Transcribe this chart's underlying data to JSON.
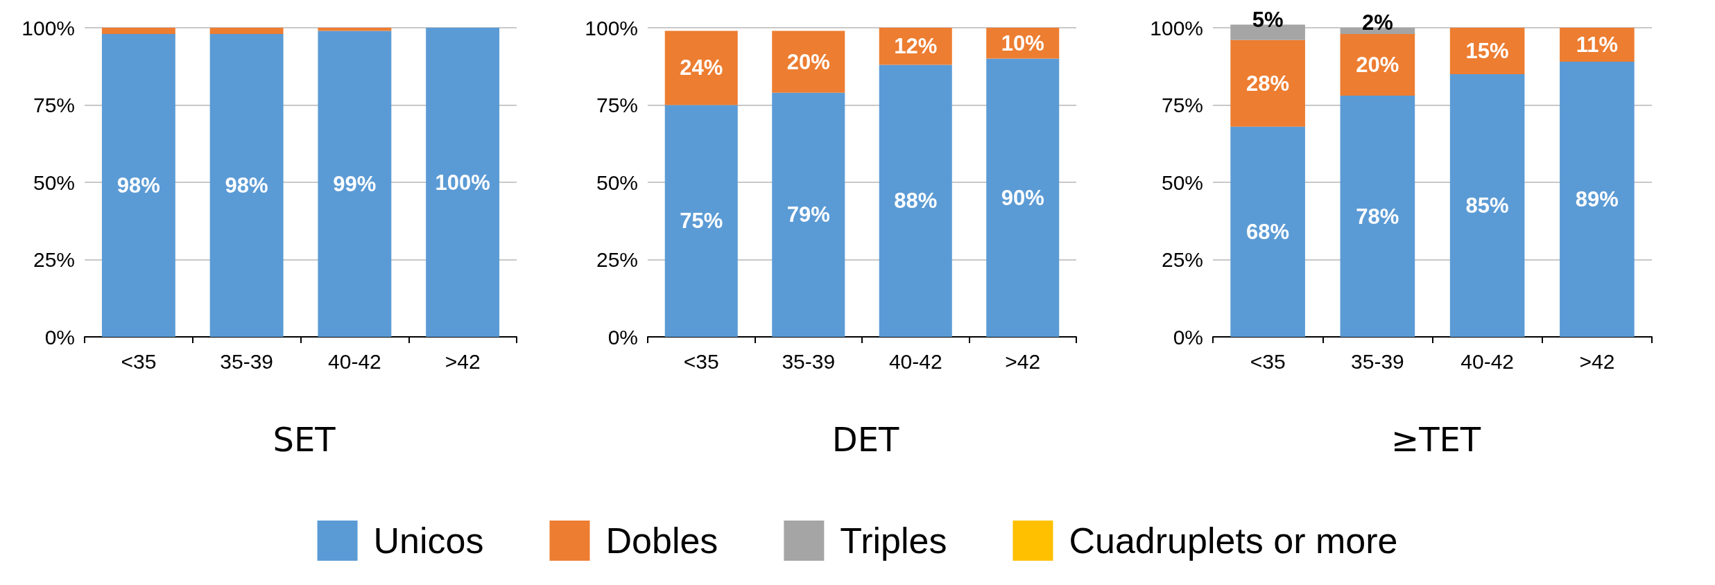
{
  "chart_data": [
    {
      "type": "bar",
      "title": "SET",
      "stacked": true,
      "categories": [
        "<35",
        "35-39",
        "40-42",
        ">42"
      ],
      "ylim": [
        0,
        100
      ],
      "yticks": [
        {
          "value": 0,
          "label": "0%"
        },
        {
          "value": 25,
          "label": "25%"
        },
        {
          "value": 50,
          "label": "50%"
        },
        {
          "value": 75,
          "label": "75%"
        },
        {
          "value": 100,
          "label": "100%"
        }
      ],
      "grid": "y",
      "legend": false,
      "series": [
        {
          "color": "#5b9bd5",
          "values": [
            98,
            98,
            99,
            100
          ],
          "value_labels": [
            "98%",
            "98%",
            "99%",
            "100%"
          ]
        },
        {
          "color": "#ed7d31",
          "values": [
            2,
            2,
            1,
            0
          ]
        }
      ]
    },
    {
      "type": "bar",
      "title": "DET",
      "stacked": true,
      "categories": [
        "<35",
        "35-39",
        "40-42",
        ">42"
      ],
      "ylim": [
        0,
        100
      ],
      "yticks": [
        {
          "value": 0,
          "label": "0%"
        },
        {
          "value": 25,
          "label": "25%"
        },
        {
          "value": 50,
          "label": "50%"
        },
        {
          "value": 75,
          "label": "75%"
        },
        {
          "value": 100,
          "label": "100%"
        }
      ],
      "grid": "y",
      "legend": "bottom",
      "series": [
        {
          "name": "Unicos",
          "color": "#5b9bd5",
          "values": [
            75,
            79,
            88,
            90
          ],
          "value_labels": [
            "75%",
            "79%",
            "88%",
            "90%"
          ]
        },
        {
          "name": "Dobles",
          "color": "#ed7d31",
          "values": [
            24,
            20,
            12,
            10
          ],
          "value_labels": [
            "24%",
            "20%",
            "12%",
            "10%"
          ]
        },
        {
          "name": "Triples",
          "color": "#a5a5a5",
          "values": [
            0,
            0,
            0,
            0
          ]
        },
        {
          "name": "Cuadruplets or more",
          "color": "#ffc000",
          "values": [
            0,
            0,
            0,
            0
          ]
        }
      ]
    },
    {
      "type": "bar",
      "title": "≥TET",
      "stacked": true,
      "categories": [
        "<35",
        "35-39",
        "40-42",
        ">42"
      ],
      "ylim": [
        0,
        101
      ],
      "yticks": [
        {
          "value": 0,
          "label": "0%"
        },
        {
          "value": 25,
          "label": "25%"
        },
        {
          "value": 50,
          "label": "50%"
        },
        {
          "value": 75,
          "label": "75%"
        },
        {
          "value": 100,
          "label": "100%"
        }
      ],
      "grid": "y",
      "legend": false,
      "series": [
        {
          "color": "#5b9bd5",
          "values": [
            68,
            78,
            85,
            89
          ],
          "value_labels": [
            "68%",
            "78%",
            "85%",
            "89%"
          ]
        },
        {
          "color": "#ed7d31",
          "values": [
            28,
            20,
            15,
            11
          ],
          "value_labels": [
            "28%",
            "20%",
            "15%",
            "11%"
          ]
        },
        {
          "color": "#a5a5a5",
          "values": [
            5,
            2,
            0,
            0
          ],
          "value_labels": [
            "5%",
            "2%",
            null,
            null
          ]
        }
      ]
    }
  ]
}
